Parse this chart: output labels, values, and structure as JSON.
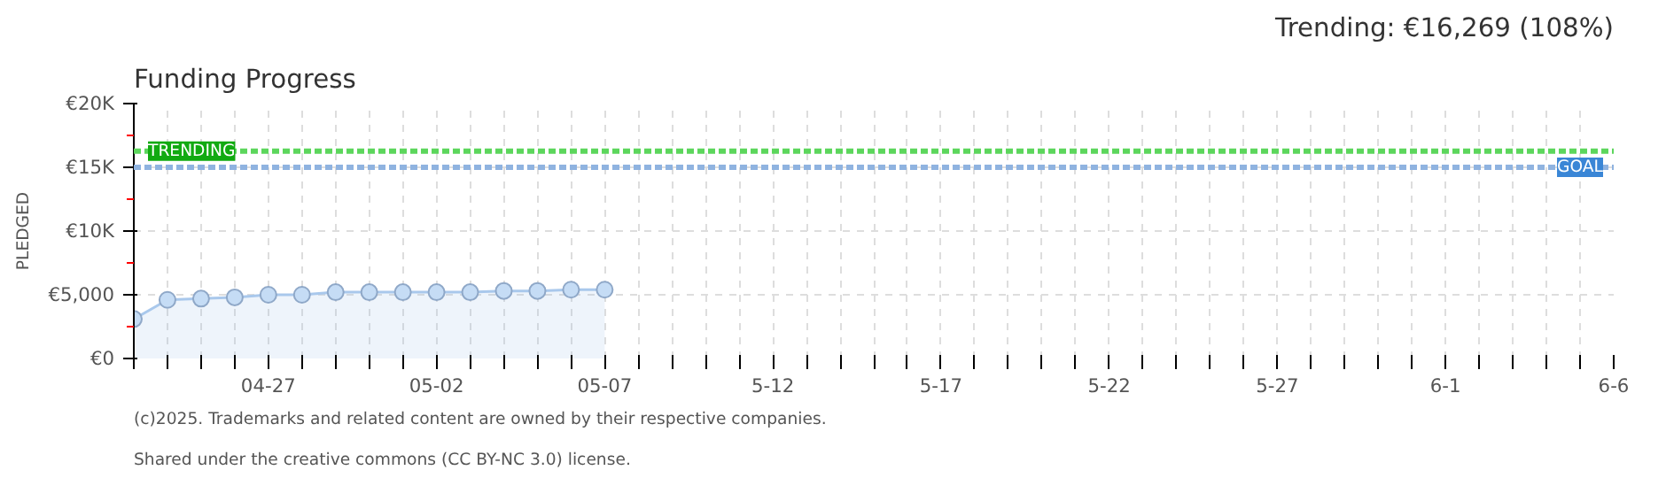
{
  "chart_data": {
    "type": "area",
    "title": "Funding Progress",
    "subtitle": "Trending: €16,269 (108%)",
    "ylabel": "PLEDGED",
    "x": [
      "2025-04-23",
      "2025-04-24",
      "2025-04-25",
      "2025-04-26",
      "2025-04-27",
      "2025-04-28",
      "2025-04-29",
      "2025-04-30",
      "2025-05-01",
      "2025-05-02",
      "2025-05-03",
      "2025-05-04",
      "2025-05-05",
      "2025-05-06",
      "2025-05-07"
    ],
    "series": [
      {
        "color": "#a9c8ec",
        "values": [
          3100,
          4600,
          4700,
          4800,
          5000,
          5000,
          5200,
          5200,
          5200,
          5200,
          5200,
          5300,
          5300,
          5400,
          5400
        ]
      }
    ],
    "marker": "circle",
    "grid": true,
    "xlim": [
      "2025-04-23",
      "2025-06-06"
    ],
    "xticks": [
      {
        "value": "2025-04-23",
        "label": null
      },
      {
        "value": "2025-04-24",
        "label": null
      },
      {
        "value": "2025-04-25",
        "label": null
      },
      {
        "value": "2025-04-26",
        "label": null
      },
      {
        "value": "2025-04-27",
        "label": "04-27"
      },
      {
        "value": "2025-04-28",
        "label": null
      },
      {
        "value": "2025-04-29",
        "label": null
      },
      {
        "value": "2025-04-30",
        "label": null
      },
      {
        "value": "2025-05-01",
        "label": null
      },
      {
        "value": "2025-05-02",
        "label": "05-02"
      },
      {
        "value": "2025-05-03",
        "label": null
      },
      {
        "value": "2025-05-04",
        "label": null
      },
      {
        "value": "2025-05-05",
        "label": null
      },
      {
        "value": "2025-05-06",
        "label": null
      },
      {
        "value": "2025-05-07",
        "label": "05-07"
      },
      {
        "value": "2025-05-08",
        "label": null
      },
      {
        "value": "2025-05-09",
        "label": null
      },
      {
        "value": "2025-05-10",
        "label": null
      },
      {
        "value": "2025-05-11",
        "label": null
      },
      {
        "value": "2025-05-12",
        "label": "5-12"
      },
      {
        "value": "2025-05-13",
        "label": null
      },
      {
        "value": "2025-05-14",
        "label": null
      },
      {
        "value": "2025-05-15",
        "label": null
      },
      {
        "value": "2025-05-16",
        "label": null
      },
      {
        "value": "2025-05-17",
        "label": "5-17"
      },
      {
        "value": "2025-05-18",
        "label": null
      },
      {
        "value": "2025-05-19",
        "label": null
      },
      {
        "value": "2025-05-20",
        "label": null
      },
      {
        "value": "2025-05-21",
        "label": null
      },
      {
        "value": "2025-05-22",
        "label": "5-22"
      },
      {
        "value": "2025-05-23",
        "label": null
      },
      {
        "value": "2025-05-24",
        "label": null
      },
      {
        "value": "2025-05-25",
        "label": null
      },
      {
        "value": "2025-05-26",
        "label": null
      },
      {
        "value": "2025-05-27",
        "label": "5-27"
      },
      {
        "value": "2025-05-28",
        "label": null
      },
      {
        "value": "2025-05-29",
        "label": null
      },
      {
        "value": "2025-05-30",
        "label": null
      },
      {
        "value": "2025-05-31",
        "label": null
      },
      {
        "value": "2025-06-01",
        "label": "6-1"
      },
      {
        "value": "2025-06-02",
        "label": null
      },
      {
        "value": "2025-06-03",
        "label": null
      },
      {
        "value": "2025-06-04",
        "label": null
      },
      {
        "value": "2025-06-05",
        "label": null
      },
      {
        "value": "2025-06-06",
        "label": "6-6"
      }
    ],
    "ylim": [
      0,
      20000
    ],
    "yticks": [
      {
        "value": 0,
        "label": "€0"
      },
      {
        "value": 2500,
        "label": null
      },
      {
        "value": 5000,
        "label": "€5,000"
      },
      {
        "value": 7500,
        "label": null
      },
      {
        "value": 10000,
        "label": "€10K"
      },
      {
        "value": 12500,
        "label": null
      },
      {
        "value": 15000,
        "label": "€15K"
      },
      {
        "value": 17500,
        "label": null
      },
      {
        "value": 20000,
        "label": "€20K"
      }
    ],
    "ref_lines": [
      {
        "axis": "y",
        "value": 16269,
        "label": "TRENDING",
        "color": "#5cd65c",
        "line_style": "dashed"
      },
      {
        "axis": "y",
        "value": 15000,
        "label": "GOAL",
        "color": "#8fb3e0",
        "line_style": "dashed"
      }
    ],
    "annotations": [
      "(c)2025. Trademarks and related content are owned by their respective companies.",
      "Shared under the creative commons (CC BY-NC 3.0) license."
    ]
  }
}
